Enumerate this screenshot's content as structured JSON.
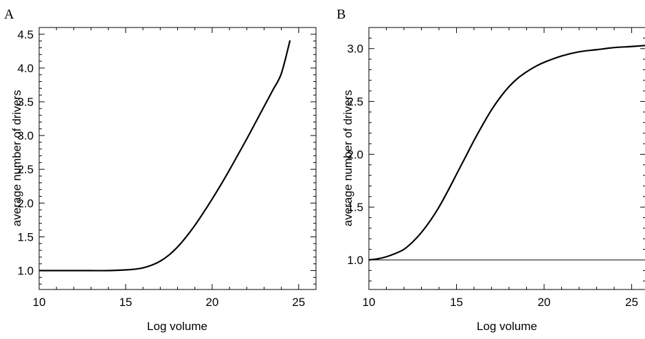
{
  "chart_data": [
    {
      "panel_label": "A",
      "type": "line",
      "title": "",
      "xlabel": "Log volume",
      "ylabel": "average number of drivers",
      "xlim": [
        10,
        26
      ],
      "ylim": [
        0.72,
        4.6
      ],
      "x_ticks": [
        10,
        15,
        20,
        25
      ],
      "y_ticks": [
        1.0,
        1.5,
        2.0,
        2.5,
        3.0,
        3.5,
        4.0,
        4.5
      ],
      "x_tick_labels": [
        "10",
        "15",
        "20",
        "25"
      ],
      "y_tick_labels": [
        "1.0",
        "1.5",
        "2.0",
        "2.5",
        "3.0",
        "3.5",
        "4.0",
        "4.5"
      ],
      "grid": false,
      "series": [
        {
          "x": [
            10,
            11,
            12,
            13,
            14,
            15,
            15.5,
            16,
            16.5,
            17,
            17.5,
            18,
            18.5,
            19,
            19.5,
            20,
            20.5,
            21,
            21.5,
            22,
            22.5,
            23,
            23.5,
            24,
            24.5
          ],
          "y": [
            1.0,
            1.0,
            1.0,
            1.0,
            1.0,
            1.01,
            1.02,
            1.04,
            1.08,
            1.14,
            1.23,
            1.35,
            1.5,
            1.67,
            1.86,
            2.06,
            2.27,
            2.49,
            2.72,
            2.95,
            3.19,
            3.43,
            3.67,
            3.92,
            4.41
          ]
        }
      ]
    },
    {
      "panel_label": "B",
      "type": "line",
      "title": "",
      "xlabel": "Log volume",
      "ylabel": "average number of drivers",
      "xlim": [
        10,
        25.8
      ],
      "ylim": [
        0.72,
        3.2
      ],
      "x_ticks": [
        10,
        15,
        20,
        25
      ],
      "y_ticks": [
        1.0,
        1.5,
        2.0,
        2.5,
        3.0
      ],
      "x_tick_labels": [
        "10",
        "15",
        "20",
        "25"
      ],
      "y_tick_labels": [
        "1.0",
        "1.5",
        "2.0",
        "2.5",
        "3.0"
      ],
      "grid": false,
      "series": [
        {
          "x": [
            10,
            10.5,
            11,
            11.5,
            12,
            12.5,
            13,
            13.5,
            14,
            14.5,
            15,
            15.5,
            16,
            16.5,
            17,
            17.5,
            18,
            18.5,
            19,
            19.5,
            20,
            21,
            22,
            23,
            24,
            25,
            25.8
          ],
          "y": [
            1.0,
            1.01,
            1.03,
            1.06,
            1.1,
            1.17,
            1.26,
            1.37,
            1.5,
            1.65,
            1.81,
            1.97,
            2.13,
            2.28,
            2.42,
            2.54,
            2.64,
            2.72,
            2.78,
            2.83,
            2.87,
            2.93,
            2.97,
            2.99,
            3.01,
            3.02,
            3.03
          ]
        },
        {
          "x": [
            10,
            25.8
          ],
          "y": [
            1.0,
            1.0
          ]
        }
      ]
    }
  ]
}
